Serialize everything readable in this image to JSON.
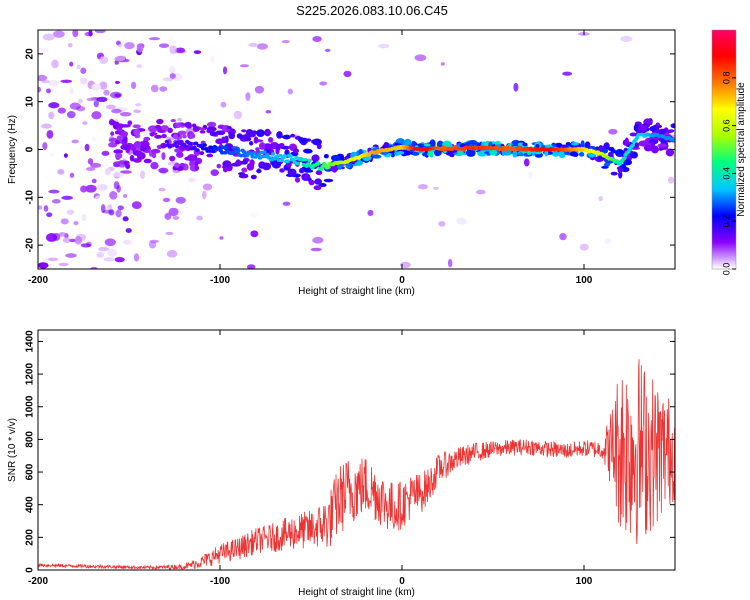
{
  "figure": {
    "title": "S225.2026.083.10.06.C45"
  },
  "chart_data": [
    {
      "type": "heatmap",
      "title": "S225.2026.083.10.06.C45",
      "xlabel": "Height of straight line (km)",
      "ylabel": "Frequency (Hz)",
      "xlim": [
        -200,
        150
      ],
      "ylim": [
        -25,
        25
      ],
      "x_ticks": [
        -200,
        -100,
        0,
        100
      ],
      "y_ticks": [
        -20,
        -10,
        0,
        10,
        20
      ],
      "colorbar": {
        "label": "Normalized spectral amplitude",
        "range": [
          0,
          1
        ],
        "ticks": [
          "0.0",
          "0.2",
          "0.4",
          "0.6",
          "0.8"
        ],
        "colormap": [
          "#ffffff",
          "#8800ff",
          "#0000ff",
          "#00c8ff",
          "#00ff80",
          "#aaff00",
          "#ffff00",
          "#ff7700",
          "#ff0000",
          "#ff0066"
        ]
      },
      "ridge": {
        "x": [
          -120,
          -100,
          -80,
          -60,
          -45,
          -30,
          -15,
          0,
          10,
          20,
          40,
          60,
          80,
          100,
          110,
          120,
          130,
          140,
          150
        ],
        "freq": [
          1,
          0,
          -1,
          -2,
          -3.5,
          -2.5,
          -0.5,
          0.5,
          0,
          0.2,
          0.3,
          0.2,
          0,
          0,
          -1,
          -3,
          3,
          3,
          2
        ],
        "amplitude": [
          0.15,
          0.25,
          0.3,
          0.35,
          0.45,
          0.6,
          0.75,
          0.7,
          0.95,
          0.8,
          0.85,
          0.8,
          0.9,
          0.7,
          0.6,
          0.4,
          0.35,
          0.3,
          0.3
        ]
      }
    },
    {
      "type": "line",
      "xlabel": "Height of straight line (km)",
      "ylabel": "SNR (10 * v/v)",
      "xlim": [
        -200,
        150
      ],
      "ylim": [
        0,
        1470
      ],
      "x_ticks": [
        -200,
        -100,
        0,
        100
      ],
      "y_ticks": [
        0,
        200,
        400,
        600,
        800,
        1000,
        1200,
        1400
      ],
      "color": "#ee3333",
      "series": [
        {
          "x": [
            -200,
            -180,
            -160,
            -140,
            -120,
            -110,
            -100,
            -90,
            -80,
            -70,
            -60,
            -50,
            -45,
            -40,
            -35,
            -30,
            -25,
            -20,
            -15,
            -10,
            -5,
            0,
            5,
            10,
            15,
            20,
            30,
            40,
            50,
            60,
            70,
            80,
            90,
            100,
            110,
            115,
            120,
            130,
            140,
            150
          ],
          "values": [
            30,
            25,
            20,
            15,
            20,
            50,
            100,
            130,
            180,
            200,
            230,
            250,
            270,
            300,
            420,
            480,
            500,
            520,
            480,
            420,
            380,
            400,
            450,
            470,
            520,
            620,
            680,
            720,
            740,
            750,
            755,
            740,
            730,
            745,
            740,
            750,
            760,
            740,
            720,
            730
          ],
          "noise": [
            10,
            10,
            10,
            10,
            15,
            40,
            60,
            70,
            80,
            90,
            110,
            120,
            140,
            180,
            220,
            220,
            200,
            190,
            180,
            170,
            160,
            150,
            140,
            130,
            110,
            90,
            70,
            60,
            50,
            50,
            50,
            50,
            50,
            50,
            60,
            250,
            550,
            600,
            450,
            300
          ]
        }
      ]
    }
  ]
}
